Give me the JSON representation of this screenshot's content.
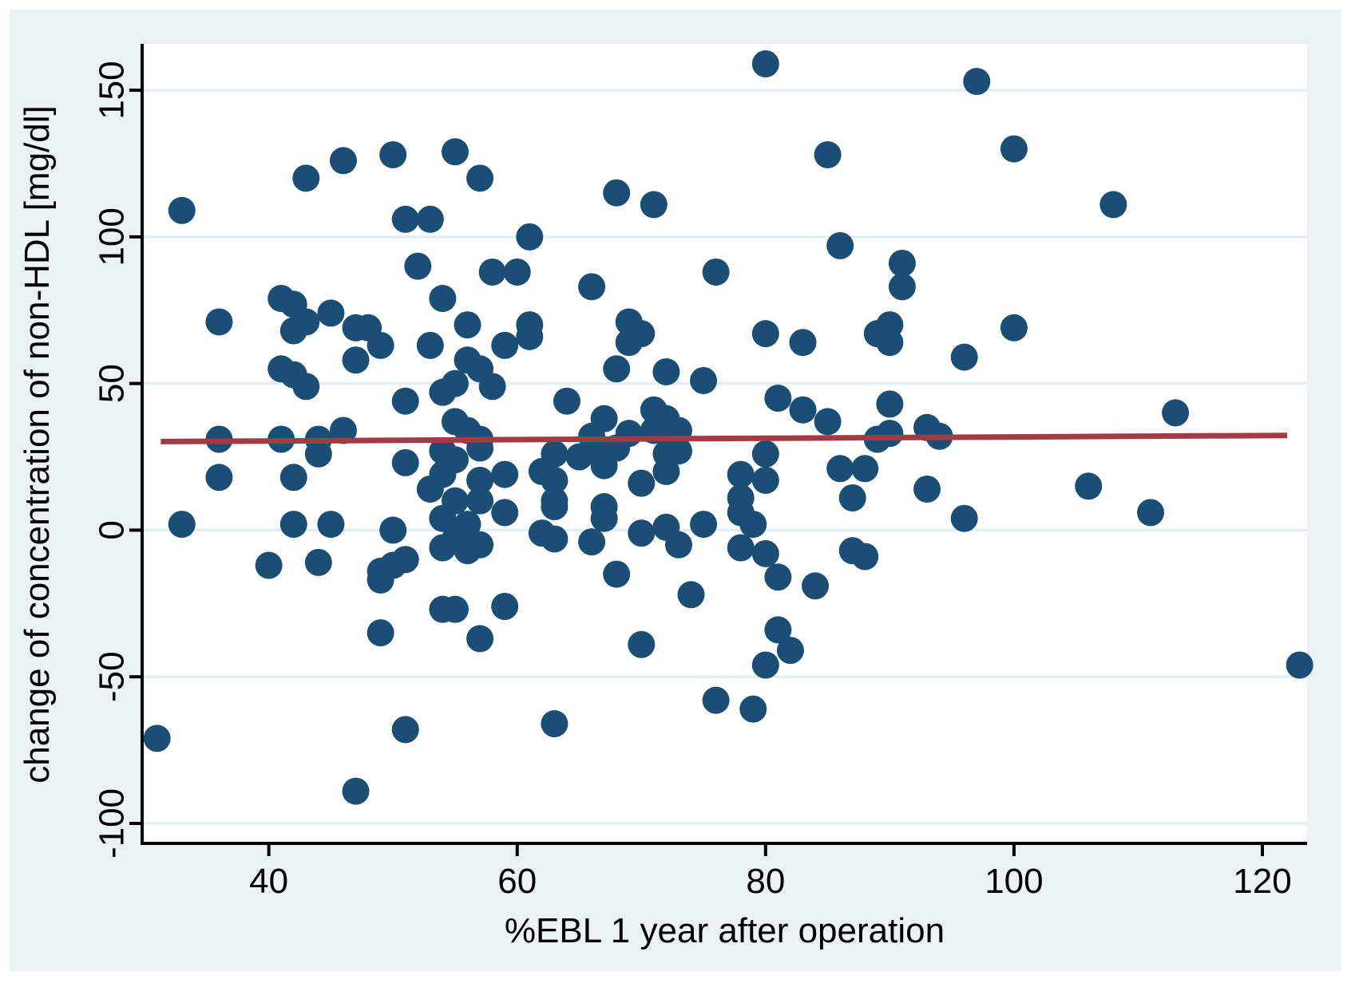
{
  "figure": {
    "outer_background": "#ffffff",
    "frame_background": "#eaf2f3",
    "plot_background": "#ffffff",
    "gridline_color": "#e0eef0",
    "axis_color": "#000000"
  },
  "chart_data": {
    "type": "scatter",
    "title": "",
    "xlabel": "%EBL 1 year after operation",
    "ylabel": "change of concentration of non-HDL [mg/dl]",
    "x_ticks": [
      40,
      60,
      80,
      100,
      120
    ],
    "y_ticks": [
      -100,
      -50,
      0,
      50,
      100,
      150
    ],
    "xlim": [
      29.8,
      123.6
    ],
    "ylim": [
      -106.8,
      165.8
    ],
    "grid": "horizontal-only",
    "legend": "none",
    "point_color": "#1a4e74",
    "point_radius_px": 17,
    "trend_line": {
      "color": "#a33b44",
      "x1": 31.3,
      "y1": 30.2,
      "x2": 122.0,
      "y2": 32.3
    },
    "points": [
      [
        33,
        109
      ],
      [
        43,
        120
      ],
      [
        46,
        126
      ],
      [
        50,
        128
      ],
      [
        55,
        129
      ],
      [
        51,
        106
      ],
      [
        53,
        106
      ],
      [
        52,
        90
      ],
      [
        54,
        79
      ],
      [
        41,
        79
      ],
      [
        42,
        77
      ],
      [
        45,
        74
      ],
      [
        57,
        120
      ],
      [
        68,
        115
      ],
      [
        71,
        111
      ],
      [
        80,
        159
      ],
      [
        61,
        100
      ],
      [
        58,
        88
      ],
      [
        60,
        88
      ],
      [
        66,
        83
      ],
      [
        76,
        88
      ],
      [
        97,
        153
      ],
      [
        85,
        128
      ],
      [
        100,
        130
      ],
      [
        86,
        97
      ],
      [
        91,
        91
      ],
      [
        91,
        83
      ],
      [
        108,
        111
      ],
      [
        36,
        71
      ],
      [
        42,
        68
      ],
      [
        43,
        71
      ],
      [
        47,
        69
      ],
      [
        48,
        69
      ],
      [
        49,
        63
      ],
      [
        47,
        58
      ],
      [
        53,
        63
      ],
      [
        41,
        55
      ],
      [
        42,
        53
      ],
      [
        43,
        49
      ],
      [
        51,
        44
      ],
      [
        54,
        47
      ],
      [
        55,
        50
      ],
      [
        46,
        34
      ],
      [
        36,
        31
      ],
      [
        41,
        31
      ],
      [
        44,
        31
      ],
      [
        44,
        26
      ],
      [
        51,
        23
      ],
      [
        36,
        18
      ],
      [
        42,
        18
      ],
      [
        33,
        2
      ],
      [
        42,
        2
      ],
      [
        45,
        2
      ],
      [
        50,
        0
      ],
      [
        40,
        -12
      ],
      [
        44,
        -11
      ],
      [
        49,
        -14
      ],
      [
        50,
        -12
      ],
      [
        51,
        -10
      ],
      [
        49,
        -17
      ],
      [
        56,
        70
      ],
      [
        59,
        63
      ],
      [
        61,
        66
      ],
      [
        61,
        70
      ],
      [
        69,
        71
      ],
      [
        69,
        64
      ],
      [
        70,
        67
      ],
      [
        80,
        67
      ],
      [
        56,
        58
      ],
      [
        57,
        55
      ],
      [
        68,
        55
      ],
      [
        72,
        54
      ],
      [
        75,
        51
      ],
      [
        58,
        49
      ],
      [
        64,
        44
      ],
      [
        67,
        38
      ],
      [
        71,
        41
      ],
      [
        71,
        34
      ],
      [
        69,
        33
      ],
      [
        72,
        38
      ],
      [
        73,
        34
      ],
      [
        55,
        37
      ],
      [
        56,
        34
      ],
      [
        57,
        31
      ],
      [
        57,
        28
      ],
      [
        66,
        32
      ],
      [
        67,
        27
      ],
      [
        68,
        28
      ],
      [
        54,
        27
      ],
      [
        55,
        24
      ],
      [
        63,
        26
      ],
      [
        65,
        25
      ],
      [
        67,
        22
      ],
      [
        72,
        26
      ],
      [
        73,
        27
      ],
      [
        72,
        20
      ],
      [
        62,
        20
      ],
      [
        63,
        17
      ],
      [
        67,
        8
      ],
      [
        67,
        4
      ],
      [
        70,
        16
      ],
      [
        63,
        10
      ],
      [
        63,
        8
      ],
      [
        62,
        -1
      ],
      [
        63,
        -3
      ],
      [
        66,
        -4
      ],
      [
        70,
        -1
      ],
      [
        72,
        1
      ],
      [
        73,
        -5
      ],
      [
        75,
        2
      ],
      [
        68,
        -15
      ],
      [
        54,
        19
      ],
      [
        53,
        14
      ],
      [
        55,
        10
      ],
      [
        57,
        17
      ],
      [
        59,
        19
      ],
      [
        57,
        10
      ],
      [
        59,
        6
      ],
      [
        54,
        4
      ],
      [
        56,
        2
      ],
      [
        55,
        -3
      ],
      [
        54,
        -6
      ],
      [
        56,
        -7
      ],
      [
        57,
        -5
      ],
      [
        80,
        26
      ],
      [
        78,
        19
      ],
      [
        80,
        17
      ],
      [
        78,
        11
      ],
      [
        78,
        6
      ],
      [
        79,
        2
      ],
      [
        78,
        -6
      ],
      [
        80,
        -8
      ],
      [
        83,
        64
      ],
      [
        89,
        67
      ],
      [
        90,
        70
      ],
      [
        90,
        64
      ],
      [
        96,
        59
      ],
      [
        100,
        69
      ],
      [
        81,
        45
      ],
      [
        83,
        41
      ],
      [
        85,
        37
      ],
      [
        90,
        43
      ],
      [
        90,
        33
      ],
      [
        89,
        31
      ],
      [
        93,
        35
      ],
      [
        94,
        32
      ],
      [
        86,
        21
      ],
      [
        88,
        21
      ],
      [
        87,
        11
      ],
      [
        93,
        14
      ],
      [
        96,
        4
      ],
      [
        87,
        -7
      ],
      [
        88,
        -9
      ],
      [
        81,
        -16
      ],
      [
        84,
        -19
      ],
      [
        113,
        40
      ],
      [
        106,
        15
      ],
      [
        111,
        6
      ],
      [
        54,
        -27
      ],
      [
        55,
        -27
      ],
      [
        49,
        -35
      ],
      [
        57,
        -37
      ],
      [
        31,
        -71
      ],
      [
        51,
        -68
      ],
      [
        47,
        -89
      ],
      [
        59,
        -26
      ],
      [
        74,
        -22
      ],
      [
        70,
        -39
      ],
      [
        81,
        -34
      ],
      [
        82,
        -41
      ],
      [
        80,
        -46
      ],
      [
        76,
        -58
      ],
      [
        79,
        -61
      ],
      [
        63,
        -66
      ],
      [
        123,
        -46
      ]
    ]
  }
}
